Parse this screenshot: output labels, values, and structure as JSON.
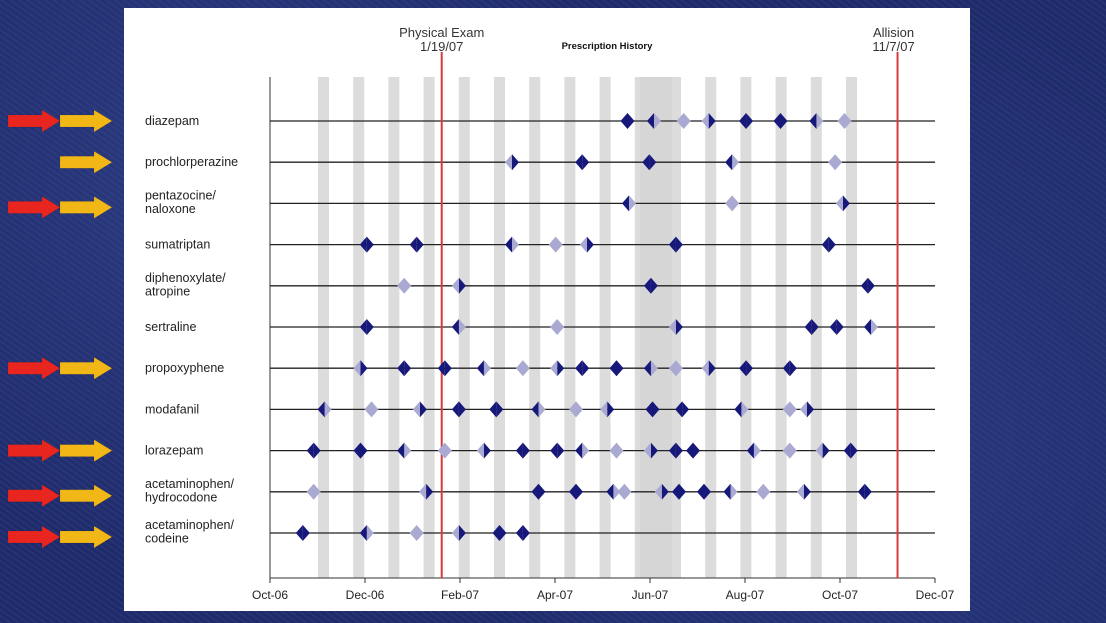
{
  "chart_data": {
    "type": "scatter",
    "title": "Prescription History",
    "x_ticks": [
      "Oct-06",
      "Dec-06",
      "Feb-07",
      "Apr-07",
      "Jun-07",
      "Aug-07",
      "Oct-07",
      "Dec-07"
    ],
    "xlim": [
      "2006-10-01",
      "2007-12-01"
    ],
    "events": [
      {
        "title": "Physical Exam",
        "date_label": "1/19/07",
        "date": "2007-01-19"
      },
      {
        "title": "Allision",
        "date_label": "11/7/07",
        "date": "2007-11-07"
      }
    ],
    "series": [
      {
        "name": "diazepam",
        "label_lines": [
          "diazepam"
        ],
        "arrows": [
          "red",
          "yellow"
        ],
        "dates": [
          "2007-05-18",
          "2007-06-04",
          "2007-06-23",
          "2007-07-09",
          "2007-08-02",
          "2007-08-24",
          "2007-09-16",
          "2007-10-04"
        ]
      },
      {
        "name": "prochlorperazine",
        "label_lines": [
          "prochlorperazine"
        ],
        "arrows": [
          "yellow"
        ],
        "dates": [
          "2007-03-05",
          "2007-04-19",
          "2007-06-01",
          "2007-07-24",
          "2007-09-28"
        ]
      },
      {
        "name": "pentazocine/naloxone",
        "label_lines": [
          "pentazocine/",
          "naloxone"
        ],
        "arrows": [
          "red",
          "yellow"
        ],
        "dates": [
          "2007-05-19",
          "2007-07-24",
          "2007-10-03"
        ]
      },
      {
        "name": "sumatriptan",
        "label_lines": [
          "sumatriptan"
        ],
        "arrows": [],
        "dates": [
          "2006-12-02",
          "2007-01-03",
          "2007-03-05",
          "2007-04-02",
          "2007-04-22",
          "2007-06-18",
          "2007-09-24"
        ]
      },
      {
        "name": "diphenoxylate/atropine",
        "label_lines": [
          "diphenoxylate/",
          "atropine"
        ],
        "arrows": [],
        "dates": [
          "2006-12-26",
          "2007-01-30",
          "2007-06-02",
          "2007-10-19"
        ]
      },
      {
        "name": "sertraline",
        "label_lines": [
          "sertraline"
        ],
        "arrows": [],
        "dates": [
          "2006-12-02",
          "2007-01-30",
          "2007-04-03",
          "2007-06-18",
          "2007-09-13",
          "2007-09-29",
          "2007-10-21"
        ]
      },
      {
        "name": "propoxyphene",
        "label_lines": [
          "propoxyphene"
        ],
        "arrows": [
          "red",
          "yellow"
        ],
        "dates": [
          "2006-11-28",
          "2006-12-26",
          "2007-01-21",
          "2007-02-15",
          "2007-03-12",
          "2007-04-03",
          "2007-04-19",
          "2007-05-11",
          "2007-06-02",
          "2007-06-18",
          "2007-07-09",
          "2007-08-02",
          "2007-08-30"
        ]
      },
      {
        "name": "modafanil",
        "label_lines": [
          "modafanil"
        ],
        "arrows": [],
        "dates": [
          "2006-11-05",
          "2006-12-05",
          "2007-01-05",
          "2007-01-30",
          "2007-02-23",
          "2007-03-22",
          "2007-04-15",
          "2007-05-05",
          "2007-06-03",
          "2007-06-22",
          "2007-07-30",
          "2007-08-30",
          "2007-09-10"
        ]
      },
      {
        "name": "lorazepam",
        "label_lines": [
          "lorazepam"
        ],
        "arrows": [
          "red",
          "yellow"
        ],
        "dates": [
          "2006-10-29",
          "2006-11-28",
          "2006-12-26",
          "2007-01-21",
          "2007-02-15",
          "2007-03-12",
          "2007-04-03",
          "2007-04-19",
          "2007-05-11",
          "2007-06-02",
          "2007-06-18",
          "2007-06-29",
          "2007-08-07",
          "2007-08-30",
          "2007-09-20",
          "2007-10-08"
        ]
      },
      {
        "name": "acetaminophen/hydrocodone",
        "label_lines": [
          "acetaminophen/",
          "hydrocodone"
        ],
        "arrows": [
          "red",
          "yellow"
        ],
        "dates": [
          "2006-10-29",
          "2007-01-09",
          "2007-03-22",
          "2007-04-15",
          "2007-05-09",
          "2007-05-16",
          "2007-06-09",
          "2007-06-20",
          "2007-07-06",
          "2007-07-23",
          "2007-08-13",
          "2007-09-08",
          "2007-10-17"
        ]
      },
      {
        "name": "acetaminophen/codeine",
        "label_lines": [
          "acetaminophen/",
          "codeine"
        ],
        "arrows": [
          "red",
          "yellow"
        ],
        "dates": [
          "2006-10-22",
          "2006-12-02",
          "2007-01-03",
          "2007-01-30",
          "2007-02-25",
          "2007-03-12"
        ]
      }
    ]
  },
  "colors": {
    "marker_dark": "#17197a",
    "marker_light": "#a9a9d2",
    "event_line": "#d63b3b",
    "red_arrow": "#e8261f",
    "yellow_arrow": "#f1b716",
    "week_band": "#dcdcdc",
    "june_band": "#d6d6d6"
  }
}
